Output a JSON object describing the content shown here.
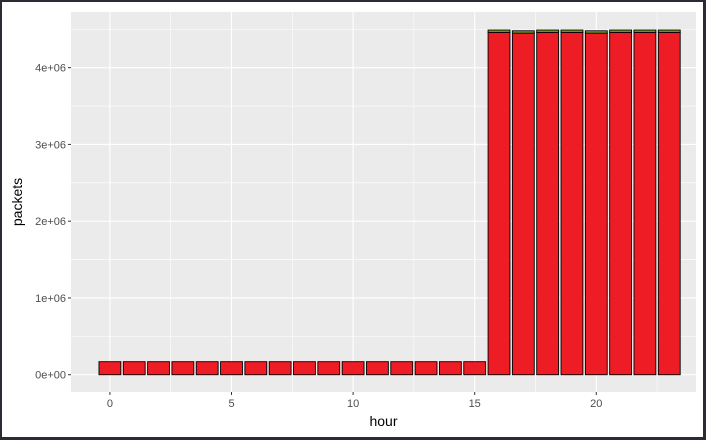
{
  "chart_data": {
    "type": "bar",
    "stacked": true,
    "x": [
      0,
      1,
      2,
      3,
      4,
      5,
      6,
      7,
      8,
      9,
      10,
      11,
      12,
      13,
      14,
      15,
      16,
      17,
      18,
      19,
      20,
      21,
      22,
      23
    ],
    "series": [
      {
        "color": "#ee1c25",
        "values": [
          170000,
          170000,
          170000,
          170000,
          170000,
          170000,
          170000,
          170000,
          170000,
          170000,
          170000,
          170000,
          170000,
          170000,
          170000,
          170000,
          4460000,
          4450000,
          4460000,
          4460000,
          4450000,
          4460000,
          4460000,
          4460000
        ]
      },
      {
        "color": "#7ca320",
        "values": [
          0,
          0,
          0,
          0,
          0,
          0,
          0,
          0,
          0,
          0,
          0,
          0,
          0,
          0,
          0,
          0,
          30000,
          30000,
          30000,
          30000,
          30000,
          30000,
          30000,
          30000
        ]
      }
    ],
    "xlabel": "hour",
    "ylabel": "packets",
    "xlim": [
      -1.6,
      24.1
    ],
    "ylim": [
      -225000,
      4725000
    ],
    "x_ticks": [
      0,
      5,
      10,
      15,
      20
    ],
    "x_tick_labels": [
      "0",
      "5",
      "10",
      "15",
      "20"
    ],
    "y_ticks": [
      0,
      1000000,
      2000000,
      3000000,
      4000000
    ],
    "y_tick_labels": [
      "0e+00",
      "1e+06",
      "2e+06",
      "3e+06",
      "4e+06"
    ],
    "grid": true,
    "panel_background": "#ebebeb",
    "grid_color": "#ffffff",
    "bar_outline": "#000000"
  }
}
